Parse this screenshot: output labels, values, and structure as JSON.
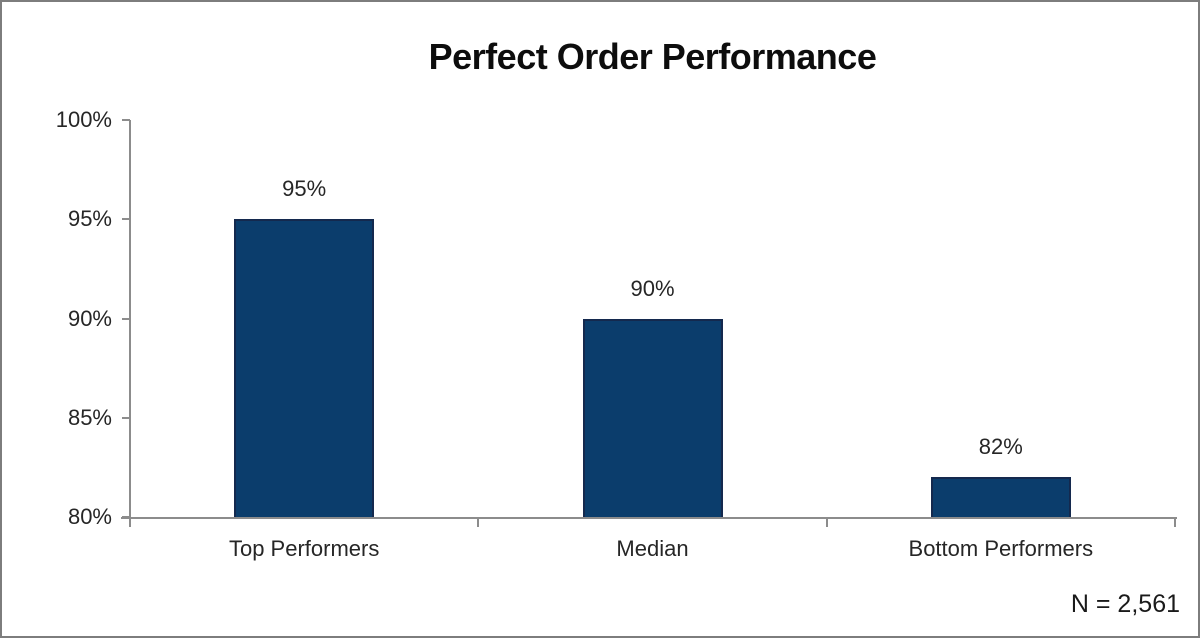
{
  "chart_data": {
    "type": "bar",
    "title": "Perfect Order Performance",
    "categories": [
      "Top Performers",
      "Median",
      "Bottom Performers"
    ],
    "values": [
      95,
      90,
      82
    ],
    "value_labels": [
      "95%",
      "90%",
      "82%"
    ],
    "y_ticks": [
      {
        "label": "100%",
        "value": 100
      },
      {
        "label": "95%",
        "value": 95
      },
      {
        "label": "90%",
        "value": 90
      },
      {
        "label": "85%",
        "value": 85
      },
      {
        "label": "80%",
        "value": 80
      }
    ],
    "ylim": [
      80,
      100
    ],
    "xlabel": "",
    "ylabel": "",
    "grid": false,
    "legend": false,
    "annotation": "N = 2,561",
    "colors": {
      "bar_fill": "#0b3d6c",
      "bar_border": "#14294e",
      "axis": "#8c8c8c",
      "text": "#262626",
      "title_text": "#0d0d0d",
      "frame_border": "#7d7d7d",
      "background": "#ffffff"
    }
  }
}
